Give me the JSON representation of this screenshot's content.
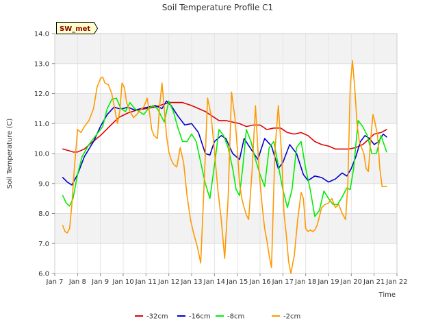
{
  "chart_data": {
    "type": "line",
    "title": "Soil Temperature Profile C1",
    "xlabel": "Time",
    "ylabel": "Soil Temperature (C)",
    "badge": "SW_met",
    "xlim": [
      7,
      22
    ],
    "ylim": [
      6.0,
      14.0
    ],
    "x_ticks": [
      {
        "value": 7,
        "label": "Jan 7"
      },
      {
        "value": 8,
        "label": "Jan 8"
      },
      {
        "value": 9,
        "label": "Jan 9"
      },
      {
        "value": 10,
        "label": "Jan 10"
      },
      {
        "value": 11,
        "label": "Jan 11"
      },
      {
        "value": 12,
        "label": "Jan 12"
      },
      {
        "value": 13,
        "label": "Jan 13"
      },
      {
        "value": 14,
        "label": "Jan 14"
      },
      {
        "value": 15,
        "label": "Jan 15"
      },
      {
        "value": 16,
        "label": "Jan 16"
      },
      {
        "value": 17,
        "label": "Jan 17"
      },
      {
        "value": 18,
        "label": "Jan 18"
      },
      {
        "value": 19,
        "label": "Jan 19"
      },
      {
        "value": 20,
        "label": "Jan 20"
      },
      {
        "value": 21,
        "label": "Jan 21"
      },
      {
        "value": 22,
        "label": "Jan 22"
      }
    ],
    "y_ticks": [
      "6.0",
      "7.0",
      "8.0",
      "9.0",
      "10.0",
      "11.0",
      "12.0",
      "13.0",
      "14.0"
    ],
    "legend_position": "bottom-center",
    "series": [
      {
        "name": "-32cm",
        "color": "#dd0000",
        "x": [
          7.35,
          7.6,
          7.8,
          8.0,
          8.3,
          8.6,
          9.0,
          9.4,
          9.8,
          10.2,
          10.6,
          11.0,
          11.4,
          11.8,
          12.0,
          12.3,
          12.6,
          13.0,
          13.3,
          13.6,
          13.9,
          14.2,
          14.5,
          14.8,
          15.1,
          15.4,
          15.7,
          16.0,
          16.3,
          16.6,
          16.9,
          17.2,
          17.5,
          17.8,
          18.1,
          18.4,
          18.7,
          19.0,
          19.3,
          19.6,
          19.9,
          20.2,
          20.5,
          20.8,
          21.0,
          21.3,
          21.55
        ],
        "y": [
          10.15,
          10.1,
          10.05,
          10.05,
          10.15,
          10.35,
          10.6,
          10.9,
          11.2,
          11.35,
          11.45,
          11.5,
          11.55,
          11.65,
          11.7,
          11.7,
          11.7,
          11.6,
          11.5,
          11.4,
          11.25,
          11.1,
          11.1,
          11.05,
          11.0,
          10.9,
          10.95,
          10.95,
          10.8,
          10.85,
          10.85,
          10.7,
          10.65,
          10.7,
          10.6,
          10.4,
          10.3,
          10.25,
          10.15,
          10.15,
          10.15,
          10.2,
          10.3,
          10.5,
          10.65,
          10.7,
          10.8
        ]
      },
      {
        "name": "-16cm",
        "color": "#0000cc",
        "x": [
          7.35,
          7.55,
          7.75,
          8.0,
          8.3,
          8.7,
          9.0,
          9.3,
          9.6,
          9.8,
          10.0,
          10.2,
          10.5,
          10.8,
          11.1,
          11.4,
          11.7,
          11.9,
          12.1,
          12.4,
          12.7,
          13.0,
          13.3,
          13.6,
          13.8,
          14.0,
          14.3,
          14.5,
          14.8,
          15.1,
          15.3,
          15.6,
          15.9,
          16.2,
          16.5,
          16.8,
          17.0,
          17.3,
          17.6,
          17.9,
          18.1,
          18.4,
          18.7,
          19.0,
          19.3,
          19.6,
          19.8,
          20.0,
          20.2,
          20.4,
          20.6,
          20.8,
          21.0,
          21.2,
          21.4,
          21.55
        ],
        "y": [
          9.2,
          9.05,
          8.95,
          9.3,
          9.9,
          10.4,
          10.9,
          11.3,
          11.55,
          11.5,
          11.5,
          11.55,
          11.45,
          11.5,
          11.55,
          11.6,
          11.5,
          11.75,
          11.6,
          11.25,
          10.95,
          11.0,
          10.7,
          10.0,
          9.95,
          10.4,
          10.6,
          10.5,
          10.0,
          9.8,
          10.5,
          10.15,
          9.8,
          10.5,
          10.25,
          9.5,
          9.7,
          10.3,
          10.0,
          9.3,
          9.1,
          9.25,
          9.2,
          9.05,
          9.15,
          9.35,
          9.25,
          9.5,
          9.9,
          10.4,
          10.6,
          10.5,
          10.3,
          10.4,
          10.65,
          10.55
        ]
      },
      {
        "name": "-8cm",
        "color": "#00ee00",
        "x": [
          7.35,
          7.5,
          7.65,
          7.8,
          8.0,
          8.2,
          8.5,
          8.8,
          9.1,
          9.3,
          9.5,
          9.7,
          9.9,
          10.1,
          10.3,
          10.5,
          10.7,
          10.9,
          11.1,
          11.3,
          11.5,
          11.7,
          11.8,
          12.0,
          12.2,
          12.4,
          12.6,
          12.8,
          13.0,
          13.2,
          13.4,
          13.6,
          13.8,
          14.0,
          14.2,
          14.4,
          14.6,
          14.8,
          14.95,
          15.1,
          15.25,
          15.4,
          15.6,
          15.8,
          16.0,
          16.2,
          16.4,
          16.6,
          16.8,
          17.0,
          17.2,
          17.4,
          17.6,
          17.8,
          18.0,
          18.2,
          18.4,
          18.6,
          18.8,
          19.0,
          19.2,
          19.4,
          19.6,
          19.8,
          19.95,
          20.1,
          20.3,
          20.5,
          20.7,
          20.9,
          21.1,
          21.3,
          21.55
        ],
        "y": [
          8.6,
          8.35,
          8.25,
          8.5,
          9.3,
          9.9,
          10.3,
          10.6,
          10.9,
          11.5,
          11.8,
          11.85,
          11.5,
          11.4,
          11.7,
          11.5,
          11.4,
          11.3,
          11.5,
          11.6,
          11.5,
          11.2,
          11.05,
          11.75,
          11.4,
          10.85,
          10.4,
          10.4,
          10.65,
          10.4,
          9.7,
          9.0,
          8.5,
          9.6,
          10.8,
          10.6,
          10.2,
          9.5,
          8.8,
          8.6,
          9.6,
          10.8,
          10.4,
          9.8,
          9.3,
          8.9,
          10.2,
          10.4,
          9.6,
          8.8,
          8.2,
          8.8,
          10.2,
          10.4,
          9.5,
          8.8,
          7.9,
          8.1,
          8.75,
          8.5,
          8.3,
          8.3,
          8.55,
          8.85,
          8.8,
          9.5,
          11.1,
          10.9,
          10.6,
          10.0,
          10.0,
          10.6,
          10.05
        ]
      },
      {
        "name": "-2cm",
        "color": "#ff9900",
        "x": [
          7.35,
          7.45,
          7.55,
          7.65,
          7.75,
          7.85,
          8.0,
          8.15,
          8.3,
          8.5,
          8.7,
          8.85,
          9.0,
          9.1,
          9.2,
          9.35,
          9.5,
          9.65,
          9.75,
          9.85,
          9.95,
          10.05,
          10.15,
          10.3,
          10.45,
          10.6,
          10.75,
          10.9,
          11.05,
          11.15,
          11.25,
          11.35,
          11.5,
          11.6,
          11.7,
          11.8,
          11.9,
          12.0,
          12.1,
          12.2,
          12.35,
          12.5,
          12.65,
          12.8,
          12.95,
          13.1,
          13.25,
          13.4,
          13.55,
          13.7,
          13.85,
          14.0,
          14.15,
          14.3,
          14.45,
          14.6,
          14.75,
          14.9,
          15.0,
          15.1,
          15.2,
          15.3,
          15.4,
          15.5,
          15.65,
          15.8,
          15.95,
          16.1,
          16.2,
          16.3,
          16.4,
          16.5,
          16.65,
          16.8,
          16.95,
          17.05,
          17.15,
          17.25,
          17.35,
          17.5,
          17.65,
          17.8,
          17.9,
          18.0,
          18.1,
          18.2,
          18.3,
          18.4,
          18.5,
          18.6,
          18.7,
          18.85,
          19.0,
          19.15,
          19.3,
          19.45,
          19.6,
          19.75,
          19.85,
          19.95,
          20.05,
          20.15,
          20.25,
          20.35,
          20.45,
          20.55,
          20.65,
          20.75,
          20.85,
          20.95,
          21.05,
          21.15,
          21.25,
          21.35,
          21.45,
          21.55
        ],
        "y": [
          7.6,
          7.4,
          7.35,
          7.5,
          8.3,
          9.4,
          10.8,
          10.7,
          10.9,
          11.1,
          11.5,
          12.2,
          12.5,
          12.55,
          12.35,
          12.3,
          12.0,
          11.4,
          11.0,
          11.4,
          12.35,
          12.2,
          11.7,
          11.4,
          11.2,
          11.3,
          11.45,
          11.55,
          11.85,
          11.4,
          10.8,
          10.6,
          10.5,
          11.6,
          12.35,
          11.5,
          10.6,
          10.05,
          9.8,
          9.65,
          9.55,
          10.2,
          9.7,
          8.6,
          7.8,
          7.3,
          6.9,
          6.35,
          9.0,
          11.85,
          11.3,
          10.1,
          8.8,
          7.8,
          6.5,
          8.5,
          12.05,
          11.2,
          10.2,
          9.0,
          8.5,
          8.2,
          7.95,
          7.8,
          9.4,
          11.6,
          9.5,
          8.2,
          7.5,
          7.1,
          6.6,
          6.2,
          10.1,
          11.6,
          9.9,
          8.0,
          7.3,
          6.4,
          6.0,
          6.6,
          7.8,
          8.7,
          8.5,
          7.5,
          7.4,
          7.45,
          7.4,
          7.45,
          7.6,
          7.9,
          8.2,
          8.3,
          8.35,
          8.5,
          8.2,
          8.3,
          8.0,
          7.8,
          9.0,
          12.2,
          13.1,
          12.2,
          11.0,
          10.4,
          10.2,
          10.0,
          9.5,
          9.4,
          10.5,
          11.3,
          11.0,
          10.6,
          9.5,
          8.9,
          8.9,
          8.9
        ]
      }
    ]
  }
}
